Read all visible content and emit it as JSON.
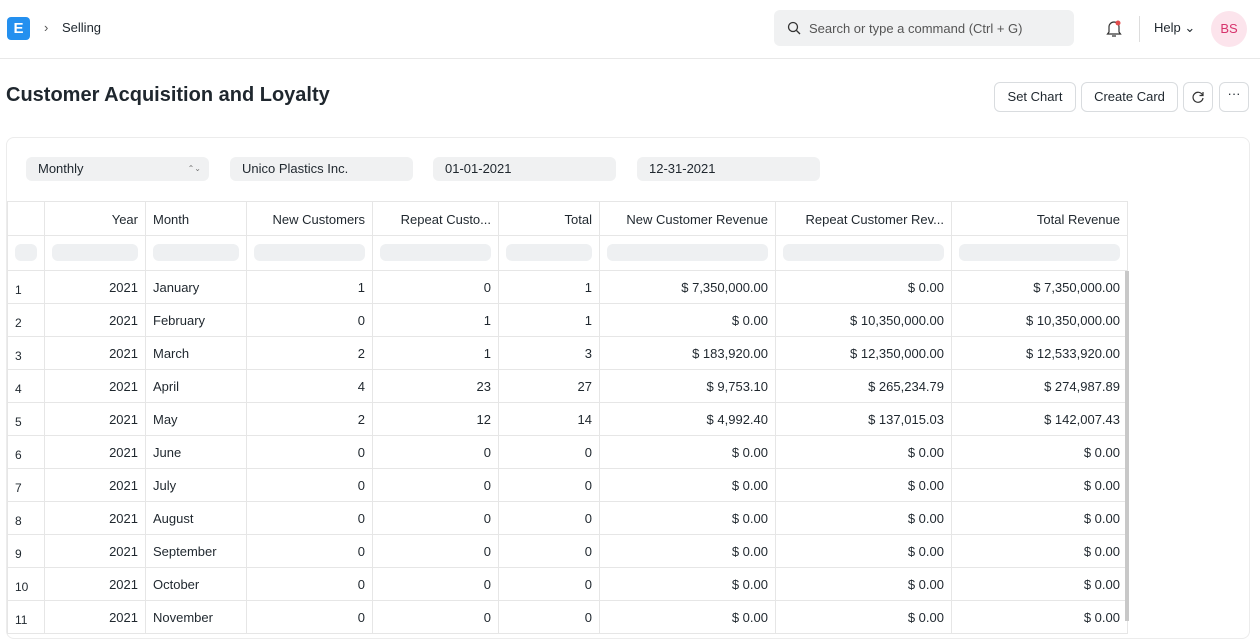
{
  "navbar": {
    "logo": "E",
    "breadcrumb": "Selling",
    "search_placeholder": "Search or type a command (Ctrl + G)",
    "help": "Help",
    "avatar": "BS"
  },
  "page": {
    "title": "Customer Acquisition and Loyalty",
    "buttons": [
      "Set Chart",
      "Create Card"
    ]
  },
  "filters": [
    "Monthly",
    "Unico Plastics Inc.",
    "01-01-2021",
    "12-31-2021"
  ],
  "table": {
    "columns": [
      "Year",
      "Month",
      "New Customers",
      "Repeat Custo...",
      "Total",
      "New Customer Revenue",
      "Repeat Customer Rev...",
      "Total Revenue"
    ],
    "rows": [
      [
        "1",
        "2021",
        "January",
        "1",
        "0",
        "1",
        "$ 7,350,000.00",
        "$ 0.00",
        "$ 7,350,000.00"
      ],
      [
        "2",
        "2021",
        "February",
        "0",
        "1",
        "1",
        "$ 0.00",
        "$ 10,350,000.00",
        "$ 10,350,000.00"
      ],
      [
        "3",
        "2021",
        "March",
        "2",
        "1",
        "3",
        "$ 183,920.00",
        "$ 12,350,000.00",
        "$ 12,533,920.00"
      ],
      [
        "4",
        "2021",
        "April",
        "4",
        "23",
        "27",
        "$ 9,753.10",
        "$ 265,234.79",
        "$ 274,987.89"
      ],
      [
        "5",
        "2021",
        "May",
        "2",
        "12",
        "14",
        "$ 4,992.40",
        "$ 137,015.03",
        "$ 142,007.43"
      ],
      [
        "6",
        "2021",
        "June",
        "0",
        "0",
        "0",
        "$ 0.00",
        "$ 0.00",
        "$ 0.00"
      ],
      [
        "7",
        "2021",
        "July",
        "0",
        "0",
        "0",
        "$ 0.00",
        "$ 0.00",
        "$ 0.00"
      ],
      [
        "8",
        "2021",
        "August",
        "0",
        "0",
        "0",
        "$ 0.00",
        "$ 0.00",
        "$ 0.00"
      ],
      [
        "9",
        "2021",
        "September",
        "0",
        "0",
        "0",
        "$ 0.00",
        "$ 0.00",
        "$ 0.00"
      ],
      [
        "10",
        "2021",
        "October",
        "0",
        "0",
        "0",
        "$ 0.00",
        "$ 0.00",
        "$ 0.00"
      ],
      [
        "11",
        "2021",
        "November",
        "0",
        "0",
        "0",
        "$ 0.00",
        "$ 0.00",
        "$ 0.00"
      ]
    ]
  }
}
